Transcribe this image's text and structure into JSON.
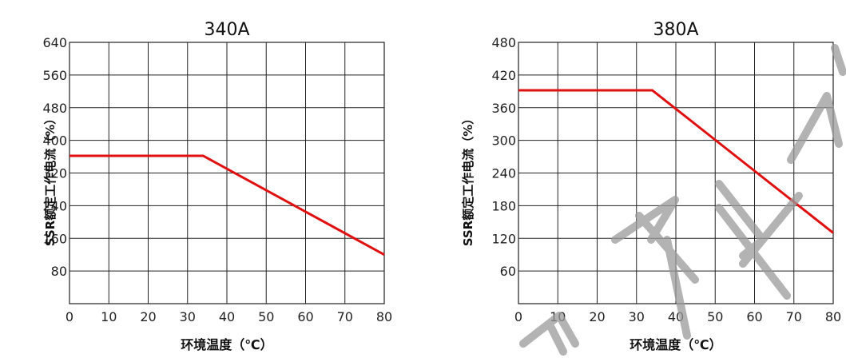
{
  "chart_data": [
    {
      "type": "line",
      "title": "340A",
      "xlabel": "环境温度（℃）",
      "ylabel": "SSR额定工作电流（%）",
      "xlim": [
        0,
        80
      ],
      "ylim": [
        0,
        640
      ],
      "xticks": [
        0,
        10,
        20,
        30,
        40,
        50,
        60,
        70,
        80
      ],
      "yticks": [
        80,
        160,
        240,
        320,
        400,
        480,
        560,
        640
      ],
      "grid": true,
      "series": [
        {
          "x": [
            0,
            34,
            80
          ],
          "y": [
            362,
            362,
            120
          ],
          "color": "#e01010"
        }
      ]
    },
    {
      "type": "line",
      "title": "380A",
      "xlabel": "环境温度（℃）",
      "ylabel": "SSR额定工作电流（%）",
      "xlim": [
        0,
        80
      ],
      "ylim": [
        0,
        480
      ],
      "xticks": [
        0,
        10,
        20,
        30,
        40,
        50,
        60,
        70,
        80
      ],
      "yticks": [
        60,
        120,
        180,
        240,
        300,
        360,
        420,
        480
      ],
      "grid": true,
      "series": [
        {
          "x": [
            0,
            34,
            80
          ],
          "y": [
            392,
            392,
            130
          ],
          "color": "#e01010"
        }
      ]
    }
  ]
}
